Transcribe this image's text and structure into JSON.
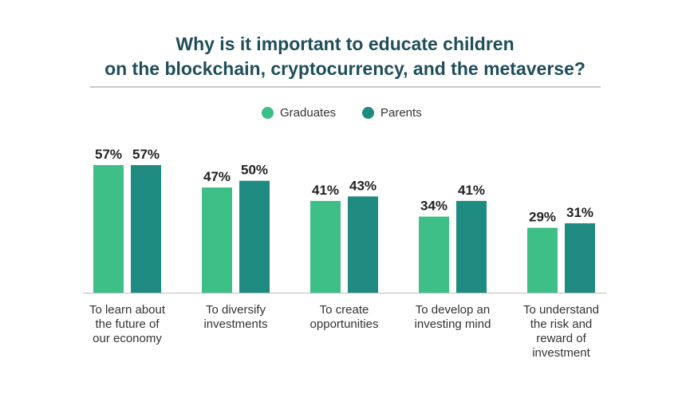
{
  "chart_data": {
    "type": "bar",
    "title_lines": [
      "Why is it important to educate children",
      "on the blockchain, cryptocurrency, and the metaverse?"
    ],
    "categories": [
      [
        "To learn about",
        "the future of",
        "our economy"
      ],
      [
        "To diversify",
        "investments"
      ],
      [
        "To create",
        "opportunities"
      ],
      [
        "To develop an",
        "investing mind"
      ],
      [
        "To understand",
        "the risk and",
        "reward of",
        "investment"
      ]
    ],
    "series": [
      {
        "name": "Graduates",
        "color": "#3dbf87",
        "values": [
          57,
          47,
          41,
          34,
          29
        ],
        "labels": [
          "57%",
          "47%",
          "41%",
          "34%",
          "29%"
        ]
      },
      {
        "name": "Parents",
        "color": "#1f8a80",
        "values": [
          57,
          50,
          43,
          41,
          31
        ],
        "labels": [
          "57%",
          "50%",
          "43%",
          "41%",
          "31%"
        ]
      }
    ],
    "ylim": [
      0,
      57
    ],
    "legend": "top-center",
    "grid": false
  }
}
